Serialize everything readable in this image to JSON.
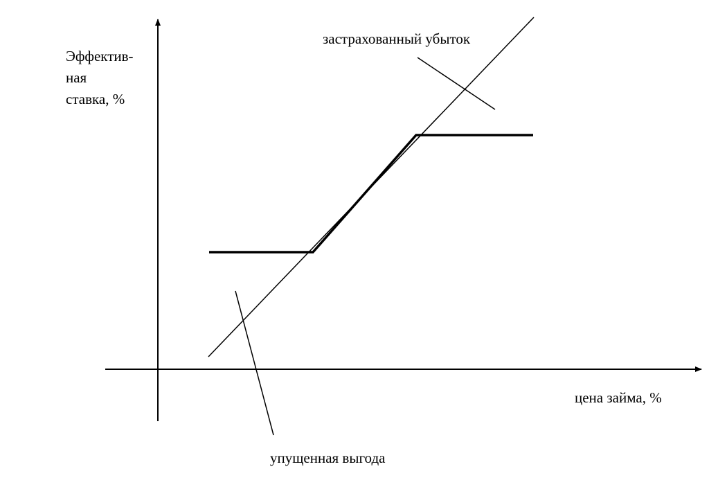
{
  "y_axis_label": [
    "Эффектив-",
    "ная",
    "ставка, %"
  ],
  "x_axis_label": "цена займа, %",
  "annotations": [
    "застрахованный убыток",
    "упущенная выгода"
  ]
}
